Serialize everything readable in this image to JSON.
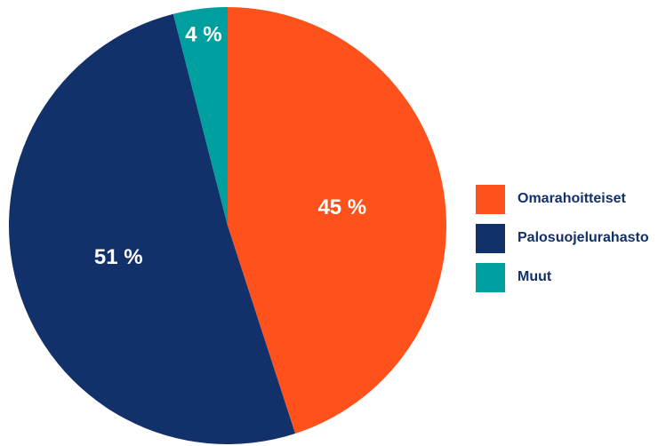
{
  "chart_data": {
    "type": "pie",
    "categories": [
      "Omarahoitteiset",
      "Palosuojelurahasto",
      "Muut"
    ],
    "values": [
      45,
      51,
      4
    ],
    "labels": [
      "45 %",
      "51 %",
      "4 %"
    ],
    "colors": [
      "#fe511b",
      "#12306a",
      "#009f9f"
    ],
    "legend_position": "right",
    "start": "top, clockwise"
  },
  "legend": {
    "items": [
      {
        "label": "Omarahoitteiset",
        "color": "#fe511b"
      },
      {
        "label": "Palosuojelurahasto",
        "color": "#12306a"
      },
      {
        "label": "Muut",
        "color": "#009f9f"
      }
    ]
  }
}
